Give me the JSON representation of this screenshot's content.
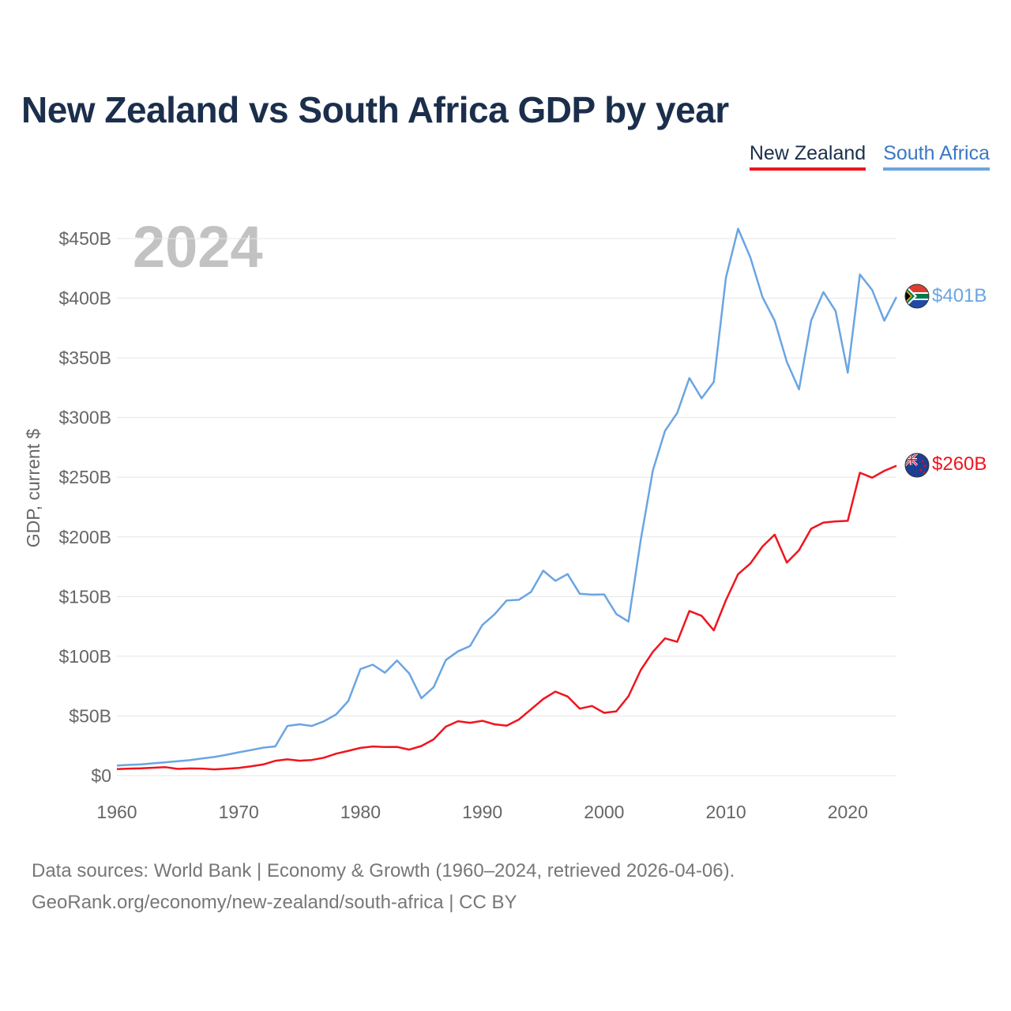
{
  "title": "New Zealand vs South Africa GDP by year",
  "year_watermark": "2024",
  "legend": {
    "nz": "New Zealand",
    "za": "South Africa"
  },
  "end_labels": {
    "nz": "$260B",
    "za": "$401B"
  },
  "footer": {
    "line1": "Data sources: World Bank | Economy & Growth (1960–2024, retrieved 2026-04-06).",
    "line2": "GeoRank.org/economy/new-zealand/south-africa | CC BY"
  },
  "colors": {
    "nz": "#f0141e",
    "za": "#6aa5e2",
    "grid": "#e6e6e6",
    "text": "#555555",
    "title": "#1b2f4c"
  },
  "chart_data": {
    "type": "line",
    "title": "New Zealand vs South Africa GDP by year",
    "xlabel": "",
    "ylabel": "GDP, current $",
    "xlim": [
      1960,
      2024
    ],
    "ylim": [
      0,
      450
    ],
    "unit": "billion current USD",
    "x_ticks": [
      1960,
      1970,
      1980,
      1990,
      2000,
      2010,
      2020
    ],
    "x_tick_labels": [
      "1960",
      "1970",
      "1980",
      "1990",
      "2000",
      "2010",
      "2020"
    ],
    "y_ticks": [
      0,
      50,
      100,
      150,
      200,
      250,
      300,
      350,
      400,
      450
    ],
    "y_tick_labels": [
      "$0",
      "$50B",
      "$100B",
      "$150B",
      "$200B",
      "$250B",
      "$300B",
      "$350B",
      "$400B",
      "$450B"
    ],
    "x": [
      1960,
      1961,
      1962,
      1963,
      1964,
      1965,
      1966,
      1967,
      1968,
      1969,
      1970,
      1971,
      1972,
      1973,
      1974,
      1975,
      1976,
      1977,
      1978,
      1979,
      1980,
      1981,
      1982,
      1983,
      1984,
      1985,
      1986,
      1987,
      1988,
      1989,
      1990,
      1991,
      1992,
      1993,
      1994,
      1995,
      1996,
      1997,
      1998,
      1999,
      2000,
      2001,
      2002,
      2003,
      2004,
      2005,
      2006,
      2007,
      2008,
      2009,
      2010,
      2011,
      2012,
      2013,
      2014,
      2015,
      2016,
      2017,
      2018,
      2019,
      2020,
      2021,
      2022,
      2023,
      2024
    ],
    "series": [
      {
        "name": "New Zealand",
        "key": "nz",
        "values": [
          5.5,
          5.9,
          6.1,
          6.6,
          7.1,
          5.6,
          6.0,
          5.9,
          5.2,
          5.8,
          6.5,
          7.8,
          9.3,
          12.4,
          13.6,
          12.5,
          13.1,
          15.0,
          18.4,
          20.8,
          23.2,
          24.4,
          24.0,
          24.1,
          21.8,
          24.8,
          30.4,
          41.0,
          45.6,
          44.3,
          45.9,
          43.0,
          41.9,
          47.0,
          55.5,
          64.2,
          70.4,
          66.3,
          56.1,
          58.4,
          52.6,
          53.9,
          66.5,
          88.3,
          103.7,
          115.0,
          112.1,
          137.9,
          133.9,
          121.7,
          147.0,
          168.8,
          177.6,
          192.0,
          201.9,
          178.5,
          188.9,
          206.9,
          212.0,
          213.0,
          213.5,
          253.8,
          249.6,
          255.4,
          259.6
        ]
      },
      {
        "name": "South Africa",
        "key": "za",
        "values": [
          8.4,
          9.0,
          9.4,
          10.3,
          11.2,
          12.1,
          13.0,
          14.4,
          15.6,
          17.5,
          19.5,
          21.4,
          23.4,
          24.5,
          41.6,
          43.0,
          41.6,
          45.5,
          51.3,
          62.6,
          89.3,
          93.0,
          86.2,
          96.4,
          85.6,
          64.8,
          74.1,
          96.8,
          104.1,
          108.6,
          126.2,
          135.1,
          146.8,
          147.3,
          153.9,
          171.7,
          163.2,
          168.9,
          152.4,
          151.6,
          151.8,
          135.4,
          129.1,
          197.0,
          255.8,
          288.9,
          303.9,
          333.1,
          316.1,
          329.8,
          417.4,
          458.2,
          434.4,
          400.9,
          381.2,
          346.7,
          323.6,
          381.4,
          405.1,
          389.3,
          337.6,
          419.9,
          406.9,
          381.2,
          401.0
        ]
      }
    ]
  }
}
